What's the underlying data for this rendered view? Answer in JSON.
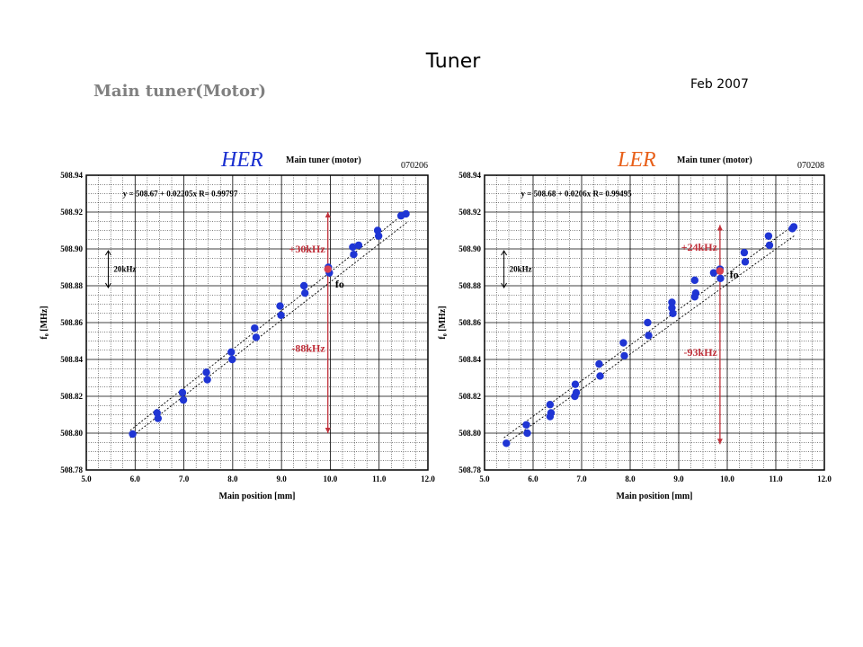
{
  "slide": {
    "title": "Tuner",
    "subtitle": "Main tuner(Motor)",
    "date": "Feb 2007"
  },
  "colors": {
    "point": "#1f35d4",
    "her_label": "#1a2fd0",
    "ler_label": "#e8601a",
    "annotation": "#c0303a",
    "grid": "#000000"
  },
  "chart_data": [
    {
      "type": "scatter",
      "ring_label": "HER",
      "title": "Main tuner (motor)",
      "code": "070206",
      "xlabel": "Main position [mm]",
      "ylabel": "f₀ [MHz]",
      "xlim": [
        5.0,
        12.0
      ],
      "ylim": [
        508.78,
        508.94
      ],
      "xticks": [
        "5.0",
        "6.0",
        "7.0",
        "8.0",
        "9.0",
        "10.0",
        "11.0",
        "12.0"
      ],
      "yticks": [
        "508.78",
        "508.80",
        "508.82",
        "508.84",
        "508.86",
        "508.88",
        "508.90",
        "508.92",
        "508.94"
      ],
      "grid": true,
      "fit_text": "y = 508.67 + 0.02205x R= 0.99797",
      "fit": {
        "intercept": 508.67,
        "slope": 0.02205
      },
      "band": {
        "x": [
          5.9,
          11.6
        ],
        "upper": [
          508.8015,
          508.921
        ],
        "lower": [
          508.7975,
          508.915
        ]
      },
      "scale_label": "20kHz",
      "scale_bar": {
        "x": 5.45,
        "y": [
          508.879,
          508.899
        ]
      },
      "annotations": [
        {
          "text": "+30kHz",
          "x": 9.95,
          "y": 508.9
        },
        {
          "text": "-88kHz",
          "x": 9.95,
          "y": 508.846
        },
        {
          "text": "fo",
          "x": 10.1,
          "y": 508.881
        }
      ],
      "span_arrow": {
        "x": 9.95,
        "y": [
          508.92,
          508.8
        ]
      },
      "fo_point": {
        "x": 9.95,
        "y": 508.889
      },
      "points": [
        [
          5.95,
          508.7995
        ],
        [
          6.45,
          508.811
        ],
        [
          6.47,
          508.808
        ],
        [
          6.97,
          508.822
        ],
        [
          6.99,
          508.818
        ],
        [
          7.46,
          508.833
        ],
        [
          7.48,
          508.829
        ],
        [
          7.97,
          508.844
        ],
        [
          7.99,
          508.84
        ],
        [
          8.45,
          508.857
        ],
        [
          8.48,
          508.852
        ],
        [
          8.97,
          508.869
        ],
        [
          8.99,
          508.864
        ],
        [
          9.46,
          508.88
        ],
        [
          9.48,
          508.876
        ],
        [
          9.96,
          508.89
        ],
        [
          9.98,
          508.887
        ],
        [
          10.46,
          508.901
        ],
        [
          10.48,
          508.897
        ],
        [
          10.58,
          508.902
        ],
        [
          10.97,
          508.91
        ],
        [
          10.99,
          508.907
        ],
        [
          11.45,
          508.918
        ],
        [
          11.55,
          508.919
        ]
      ]
    },
    {
      "type": "scatter",
      "ring_label": "LER",
      "title": "Main tuner (motor)",
      "code": "070208",
      "xlabel": "Main position [mm]",
      "ylabel": "f₀ [MHz]",
      "xlim": [
        5.0,
        12.0
      ],
      "ylim": [
        508.78,
        508.94
      ],
      "xticks": [
        "5.0",
        "6.0",
        "7.0",
        "8.0",
        "9.0",
        "10.0",
        "11.0",
        "12.0"
      ],
      "yticks": [
        "508.78",
        "508.80",
        "508.82",
        "508.84",
        "508.86",
        "508.88",
        "508.90",
        "508.92",
        "508.94"
      ],
      "grid": true,
      "fit_text": "y = 508.68 + 0.0206x R= 0.99495",
      "fit": {
        "intercept": 508.68,
        "slope": 0.0206
      },
      "band": {
        "x": [
          5.4,
          11.4
        ],
        "upper": [
          508.7975,
          508.9135
        ],
        "lower": [
          508.7935,
          508.9075
        ]
      },
      "scale_label": "20kHz",
      "scale_bar": {
        "x": 5.4,
        "y": [
          508.879,
          508.899
        ]
      },
      "annotations": [
        {
          "text": "+24kHz",
          "x": 9.85,
          "y": 508.901
        },
        {
          "text": "-93kHz",
          "x": 9.85,
          "y": 508.844
        },
        {
          "text": "fo",
          "x": 10.05,
          "y": 508.886
        }
      ],
      "span_arrow": {
        "x": 9.85,
        "y": [
          508.913,
          508.794
        ]
      },
      "fo_point": {
        "x": 9.85,
        "y": 508.888
      },
      "points": [
        [
          5.45,
          508.7945
        ],
        [
          5.86,
          508.8045
        ],
        [
          5.88,
          508.8
        ],
        [
          6.35,
          508.8155
        ],
        [
          6.37,
          508.811
        ],
        [
          6.35,
          508.809
        ],
        [
          6.87,
          508.8265
        ],
        [
          6.89,
          508.822
        ],
        [
          6.86,
          508.82
        ],
        [
          7.36,
          508.8375
        ],
        [
          7.38,
          508.831
        ],
        [
          7.86,
          508.849
        ],
        [
          7.88,
          508.842
        ],
        [
          8.36,
          508.86
        ],
        [
          8.38,
          508.853
        ],
        [
          8.86,
          508.871
        ],
        [
          8.88,
          508.865
        ],
        [
          8.86,
          508.868
        ],
        [
          9.33,
          508.883
        ],
        [
          9.35,
          508.876
        ],
        [
          9.33,
          508.874
        ],
        [
          9.72,
          508.887
        ],
        [
          9.85,
          508.889
        ],
        [
          9.86,
          508.884
        ],
        [
          10.35,
          508.898
        ],
        [
          10.37,
          508.893
        ],
        [
          10.85,
          508.907
        ],
        [
          10.87,
          508.902
        ],
        [
          11.34,
          508.911
        ],
        [
          11.37,
          508.912
        ]
      ]
    }
  ]
}
